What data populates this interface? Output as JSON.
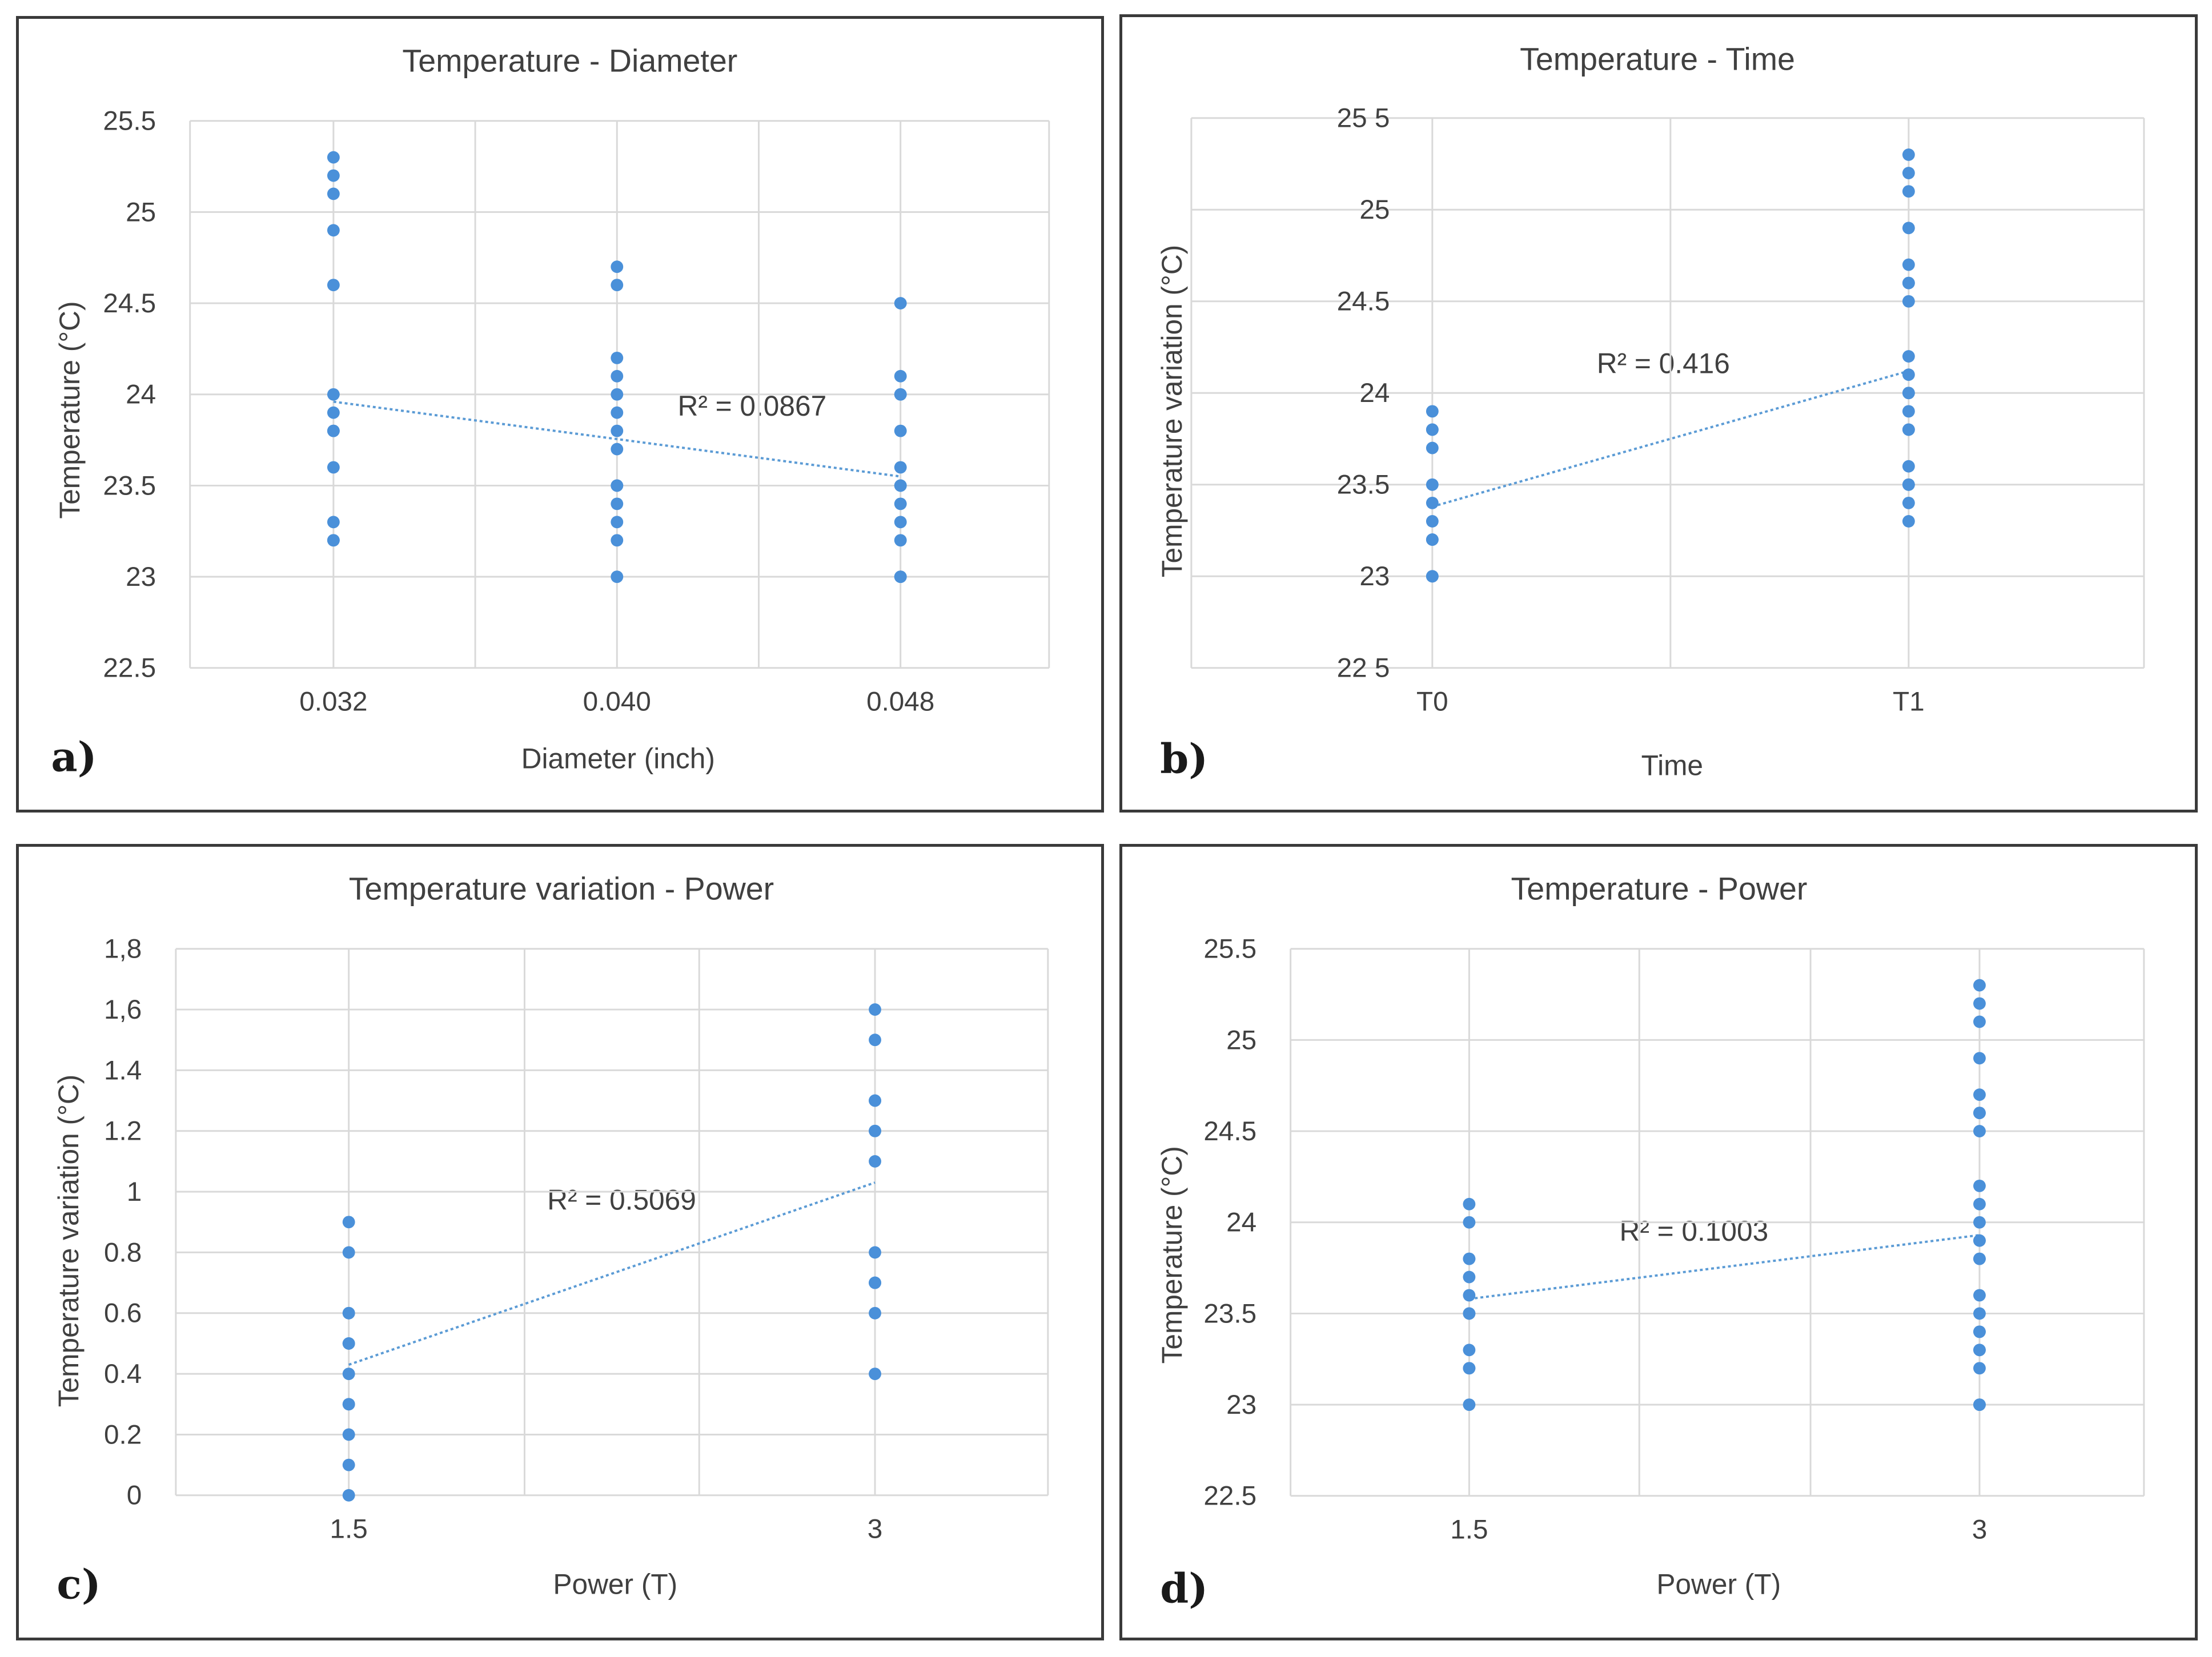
{
  "chart_data": [
    {
      "panel_label": "a)",
      "type": "scatter",
      "title": "Temperature - Diameter",
      "xlabel": "Diameter (inch)",
      "ylabel": "Temperature (°C)",
      "x_ticks": [
        "0.032",
        "0.040",
        "0.048"
      ],
      "y_ticks": [
        "25.5",
        "25",
        "24.5",
        "24",
        "23.5",
        "23",
        "22.5"
      ],
      "ylim": [
        22.5,
        25.5
      ],
      "r2_label": "R² = 0.0867",
      "trend": [
        23.96,
        23.55
      ],
      "points": [
        {
          "x": 0,
          "ys": [
            25.3,
            25.2,
            25.1,
            24.9,
            24.6,
            24.0,
            23.9,
            23.8,
            23.8,
            23.6,
            23.3,
            23.2,
            23.2
          ]
        },
        {
          "x": 1,
          "ys": [
            24.7,
            24.6,
            24.2,
            24.1,
            24.0,
            23.9,
            23.8,
            23.7,
            23.5,
            23.5,
            23.4,
            23.3,
            23.2,
            23.0
          ]
        },
        {
          "x": 2,
          "ys": [
            24.5,
            24.1,
            24.0,
            24.0,
            23.8,
            23.6,
            23.5,
            23.5,
            23.4,
            23.3,
            23.2,
            23.0,
            23.0
          ]
        }
      ]
    },
    {
      "panel_label": "b)",
      "type": "scatter",
      "title": "Temperature - Time",
      "xlabel": "Time",
      "ylabel": "Temperature variation (°C)",
      "x_ticks": [
        "T0",
        "T1"
      ],
      "y_ticks": [
        "25 5",
        "25",
        "24.5",
        "24",
        "23.5",
        "23",
        "22 5"
      ],
      "ylim": [
        22.5,
        25.5
      ],
      "r2_label": "R² = 0.416",
      "trend": [
        23.38,
        24.12
      ],
      "points": [
        {
          "x": 0,
          "ys": [
            23.9,
            23.8,
            23.8,
            23.7,
            23.5,
            23.4,
            23.3,
            23.2,
            23.2,
            23.0,
            23.0
          ]
        },
        {
          "x": 1,
          "ys": [
            25.3,
            25.2,
            25.1,
            24.9,
            24.7,
            24.6,
            24.6,
            24.5,
            24.2,
            24.1,
            24.0,
            24.0,
            23.9,
            23.8,
            23.8,
            23.6,
            23.5,
            23.5,
            23.4,
            23.3
          ]
        }
      ]
    },
    {
      "panel_label": "c)",
      "type": "scatter",
      "title": "Temperature variation - Power",
      "xlabel": "Power (T)",
      "ylabel": "Temperature variation (°C)",
      "x_ticks": [
        "1.5",
        "3"
      ],
      "y_ticks": [
        "1,8",
        "1,6",
        "1.4",
        "1.2",
        "1",
        "0.8",
        "0.6",
        "0.4",
        "0.2",
        "0"
      ],
      "ylim": [
        0,
        1.8
      ],
      "r2_label": "R² = 0.5069",
      "trend": [
        0.43,
        1.03
      ],
      "points": [
        {
          "x": 0,
          "ys": [
            0.9,
            0.8,
            0.6,
            0.6,
            0.5,
            0.5,
            0.4,
            0.3,
            0.3,
            0.2,
            0.1,
            0.0
          ]
        },
        {
          "x": 1,
          "ys": [
            1.6,
            1.5,
            1.3,
            1.3,
            1.2,
            1.2,
            1.1,
            0.8,
            0.7,
            0.7,
            0.6,
            0.4
          ]
        }
      ]
    },
    {
      "panel_label": "d)",
      "type": "scatter",
      "title": "Temperature - Power",
      "xlabel": "Power (T)",
      "ylabel": "Temperature (°C)",
      "x_ticks": [
        "1.5",
        "3"
      ],
      "y_ticks": [
        "25.5",
        "25",
        "24.5",
        "24",
        "23.5",
        "23",
        "22.5"
      ],
      "ylim": [
        22.5,
        25.5
      ],
      "r2_label": "R² = 0.1003",
      "trend": [
        23.58,
        23.93
      ],
      "points": [
        {
          "x": 0,
          "ys": [
            24.1,
            24.0,
            23.8,
            23.8,
            23.7,
            23.6,
            23.5,
            23.5,
            23.3,
            23.2,
            23.2,
            23.0
          ]
        },
        {
          "x": 1,
          "ys": [
            25.3,
            25.2,
            25.1,
            24.9,
            24.7,
            24.6,
            24.6,
            24.5,
            24.2,
            24.1,
            24.0,
            23.9,
            23.9,
            23.8,
            23.8,
            23.6,
            23.5,
            23.4,
            23.4,
            23.3,
            23.3,
            23.2,
            23.0,
            23.0
          ]
        }
      ]
    }
  ]
}
